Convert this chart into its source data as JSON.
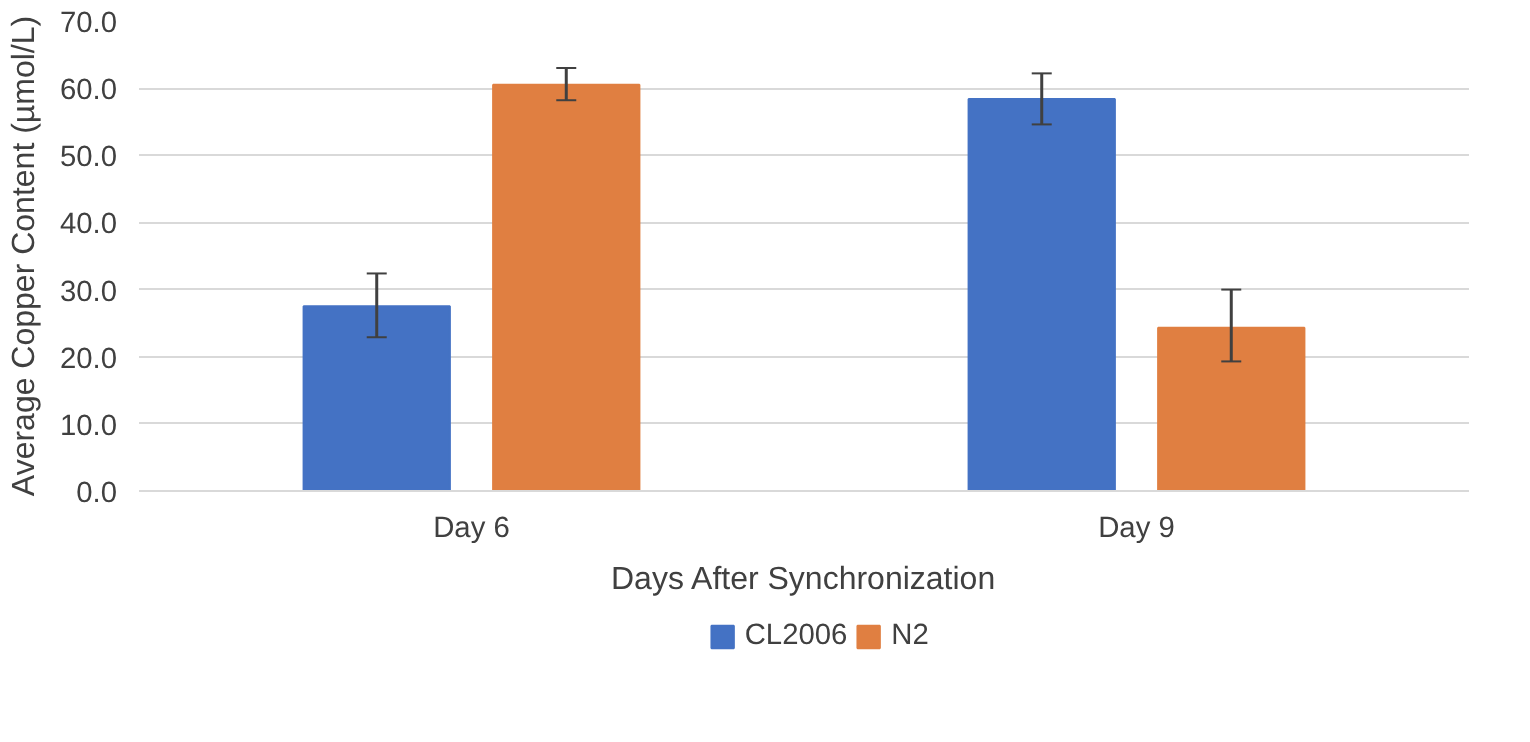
{
  "chart_data": {
    "type": "bar",
    "xlabel": "Days After Synchronization",
    "ylabel": "Average Copper Content (µmol/L)",
    "categories": [
      "Day 6",
      "Day 9"
    ],
    "series": [
      {
        "name": "CL2006",
        "color": "#4472c4",
        "values": [
          27.5,
          58.4
        ],
        "errors": [
          [
            22.9,
            32.4
          ],
          [
            54.6,
            62.2
          ]
        ]
      },
      {
        "name": "N2",
        "color": "#e07f41",
        "values": [
          60.5,
          24.3
        ],
        "errors": [
          [
            58.2,
            63.0
          ],
          [
            19.3,
            30.0
          ]
        ]
      }
    ],
    "ylim": [
      0,
      70
    ],
    "yticks": [
      {
        "value": 0,
        "label": "0.0"
      },
      {
        "value": 10,
        "label": "10.0"
      },
      {
        "value": 20,
        "label": "20.0"
      },
      {
        "value": 30,
        "label": "30.0"
      },
      {
        "value": 40,
        "label": "40.0"
      },
      {
        "value": 50,
        "label": "50.0"
      },
      {
        "value": 60,
        "label": "60.0"
      },
      {
        "value": 70,
        "label": "70.0"
      }
    ],
    "grid": "y",
    "legend": "bottom"
  }
}
